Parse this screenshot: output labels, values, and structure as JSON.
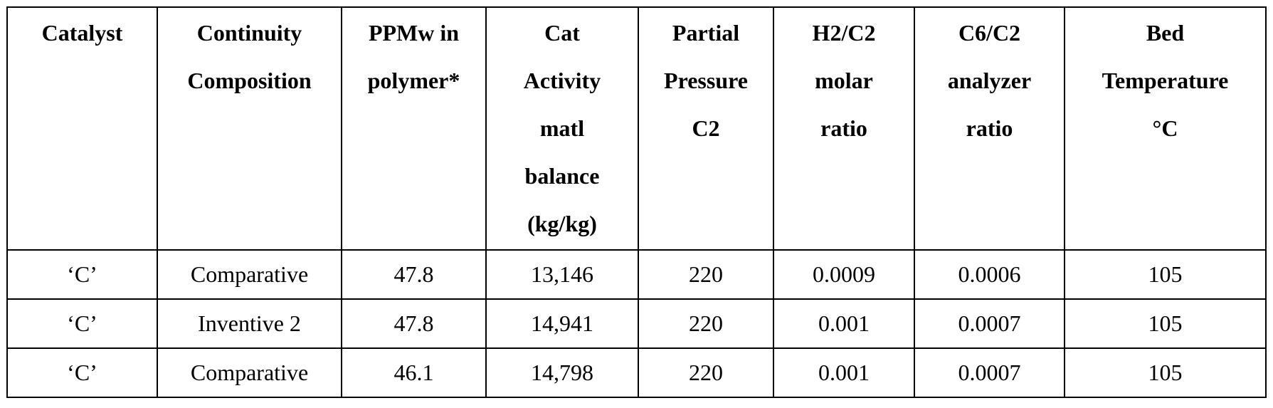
{
  "table": {
    "header": [
      [
        "Catalyst"
      ],
      [
        "Continuity",
        "Composition"
      ],
      [
        "PPMw in",
        "polymer*"
      ],
      [
        "Cat",
        "Activity",
        "matl",
        "balance",
        "(kg/kg)"
      ],
      [
        "Partial",
        "Pressure",
        "C2"
      ],
      [
        "H2/C2",
        "molar",
        "ratio"
      ],
      [
        "C6/C2",
        "analyzer",
        "ratio"
      ],
      [
        "Bed",
        "Temperature",
        "°C"
      ]
    ],
    "rows": [
      [
        "‘C’",
        "Comparative",
        "47.8",
        "13,146",
        "220",
        "0.0009",
        "0.0006",
        "105"
      ],
      [
        "‘C’",
        "Inventive 2",
        "47.8",
        "14,941",
        "220",
        "0.001",
        "0.0007",
        "105"
      ],
      [
        "‘C’",
        "Comparative",
        "46.1",
        "14,798",
        "220",
        "0.001",
        "0.0007",
        "105"
      ]
    ]
  }
}
